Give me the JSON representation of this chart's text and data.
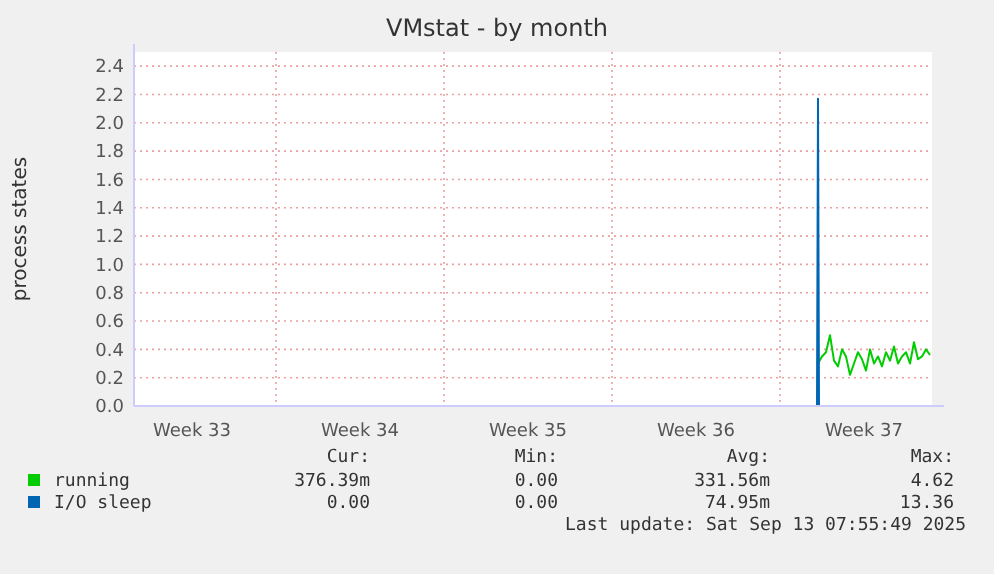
{
  "chart_data": {
    "type": "line",
    "title": "VMstat - by month",
    "ylabel": "process states",
    "xlim": [
      "2025-08-12T02:00",
      "2025-09-14T08:00"
    ],
    "xticks": [
      {
        "value": "2025-08-14T12:00",
        "label": "Week 33"
      },
      {
        "value": "2025-08-18T00:00",
        "label": null
      },
      {
        "value": "2025-08-21T12:00",
        "label": "Week 34"
      },
      {
        "value": "2025-08-25T00:00",
        "label": null
      },
      {
        "value": "2025-08-28T12:00",
        "label": "Week 35"
      },
      {
        "value": "2025-09-01T00:00",
        "label": null
      },
      {
        "value": "2025-09-04T12:00",
        "label": "Week 36"
      },
      {
        "value": "2025-09-08T00:00",
        "label": null
      },
      {
        "value": "2025-09-11T12:00",
        "label": "Week 37"
      }
    ],
    "ylim": [
      0,
      2.5
    ],
    "yticks": [
      {
        "value": 0,
        "label": "0.0"
      },
      {
        "value": 0.2,
        "label": "0.2"
      },
      {
        "value": 0.4,
        "label": "0.4"
      },
      {
        "value": 0.6,
        "label": "0.6"
      },
      {
        "value": 0.8,
        "label": "0.8"
      },
      {
        "value": 1.0,
        "label": "1.0"
      },
      {
        "value": 1.2,
        "label": "1.2"
      },
      {
        "value": 1.4,
        "label": "1.4"
      },
      {
        "value": 1.6,
        "label": "1.6"
      },
      {
        "value": 1.8,
        "label": "1.8"
      },
      {
        "value": 2.0,
        "label": "2.0"
      },
      {
        "value": 2.2,
        "label": "2.2"
      },
      {
        "value": 2.4,
        "label": "2.4"
      }
    ],
    "grid": true,
    "legend": "bottom",
    "series": [
      {
        "name": "running",
        "color": "#00cc00",
        "x": [
          "2025-09-09T14:00",
          "2025-09-09T18:00",
          "2025-09-09T22:00",
          "2025-09-10T02:00",
          "2025-09-10T06:00",
          "2025-09-10T10:00",
          "2025-09-10T14:00",
          "2025-09-10T18:00",
          "2025-09-10T22:00",
          "2025-09-11T02:00",
          "2025-09-11T06:00",
          "2025-09-11T10:00",
          "2025-09-11T14:00",
          "2025-09-11T18:00",
          "2025-09-11T22:00",
          "2025-09-12T02:00",
          "2025-09-12T06:00",
          "2025-09-12T10:00",
          "2025-09-12T14:00",
          "2025-09-12T18:00",
          "2025-09-12T22:00",
          "2025-09-13T02:00",
          "2025-09-13T06:00",
          "2025-09-13T10:00",
          "2025-09-13T14:00",
          "2025-09-13T18:00",
          "2025-09-13T22:00",
          "2025-09-14T02:00",
          "2025-09-14T06:00"
        ],
        "values": [
          0.3,
          0.35,
          0.38,
          0.5,
          0.32,
          0.28,
          0.4,
          0.35,
          0.22,
          0.3,
          0.38,
          0.33,
          0.25,
          0.4,
          0.3,
          0.35,
          0.28,
          0.38,
          0.32,
          0.42,
          0.3,
          0.35,
          0.38,
          0.3,
          0.45,
          0.33,
          0.35,
          0.4,
          0.36
        ]
      },
      {
        "name": "I/O sleep",
        "color": "#0066b3",
        "x": [
          "2025-09-09T13:00",
          "2025-09-09T14:00",
          "2025-09-09T15:00",
          "2025-09-14T06:00"
        ],
        "values": [
          0,
          2.17,
          0,
          0
        ]
      }
    ],
    "annotations": [
      "Cur:",
      "Min:",
      "Avg:",
      "Max:",
      "376.39m",
      "0.00",
      "331.56m",
      "4.62",
      "0.00",
      "0.00",
      "74.95m",
      "13.36",
      "Last update: Sat Sep 13 07:55:49 2025"
    ]
  }
}
